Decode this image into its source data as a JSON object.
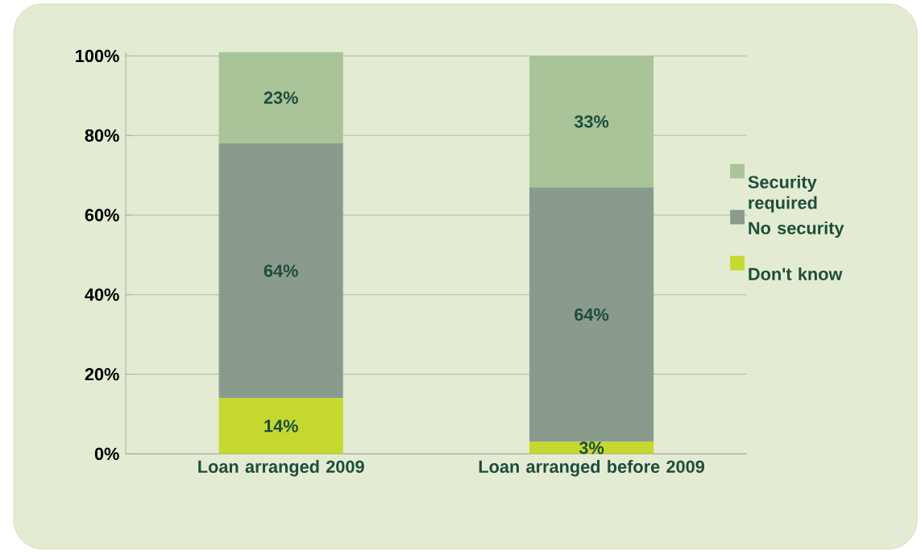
{
  "chart_data": {
    "type": "bar",
    "stacked": true,
    "categories": [
      "Loan arranged 2009",
      "Loan arranged before 2009"
    ],
    "series": [
      {
        "name": "Don't know",
        "color": "#c5d82f",
        "values": [
          14,
          3
        ],
        "value_labels": [
          "14%",
          "3%"
        ]
      },
      {
        "name": "No security",
        "color": "#8a9b8e",
        "values": [
          64,
          64
        ],
        "value_labels": [
          "64%",
          "64%"
        ]
      },
      {
        "name": "Security required",
        "color": "#a9c499",
        "values": [
          23,
          33
        ],
        "value_labels": [
          "23%",
          "33%"
        ]
      }
    ],
    "ylim": [
      0,
      101
    ],
    "yticks": [
      {
        "value": 0,
        "label": "0%"
      },
      {
        "value": 20,
        "label": "20%"
      },
      {
        "value": 40,
        "label": "40%"
      },
      {
        "value": 60,
        "label": "60%"
      },
      {
        "value": 80,
        "label": "80%"
      },
      {
        "value": 100,
        "label": "100%"
      }
    ],
    "grid": "y",
    "legend": "right"
  }
}
